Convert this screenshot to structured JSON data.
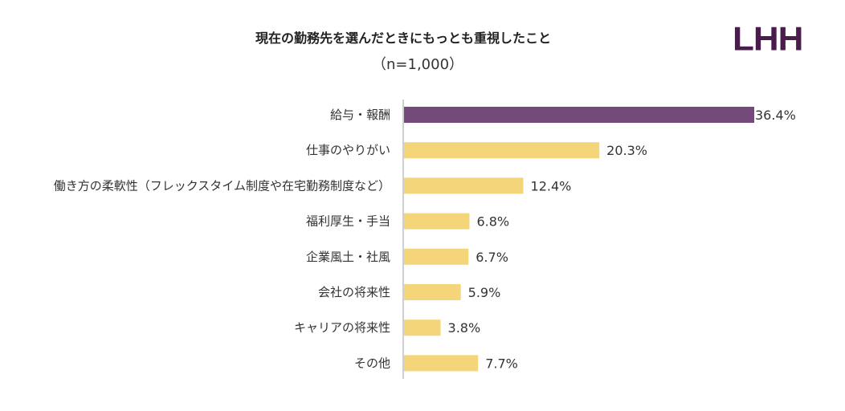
{
  "logo_text": "LHH",
  "chart_data": {
    "type": "bar",
    "orientation": "horizontal",
    "title": "現在の勤務先を選んだときにもっとも重視したこと",
    "subtitle": "（n=1,000）",
    "categories": [
      "給与・報酬",
      "仕事のやりがい",
      "働き方の柔軟性（フレックスタイム制度や在宅勤務制度など）",
      "福利厚生・手当",
      "企業風土・社風",
      "会社の将来性",
      "キャリアの将来性",
      "その他"
    ],
    "values": [
      36.4,
      20.3,
      12.4,
      6.8,
      6.7,
      5.9,
      3.8,
      7.7
    ],
    "value_labels": [
      "36.4%",
      "20.3%",
      "12.4%",
      "6.8%",
      "6.7%",
      "5.9%",
      "3.8%",
      "7.7%"
    ],
    "unit": "%",
    "colors": {
      "highlight": "#744a7a",
      "default": "#f5d57a",
      "logo": "#4a1c4e"
    },
    "grid": false,
    "legend": "none"
  }
}
